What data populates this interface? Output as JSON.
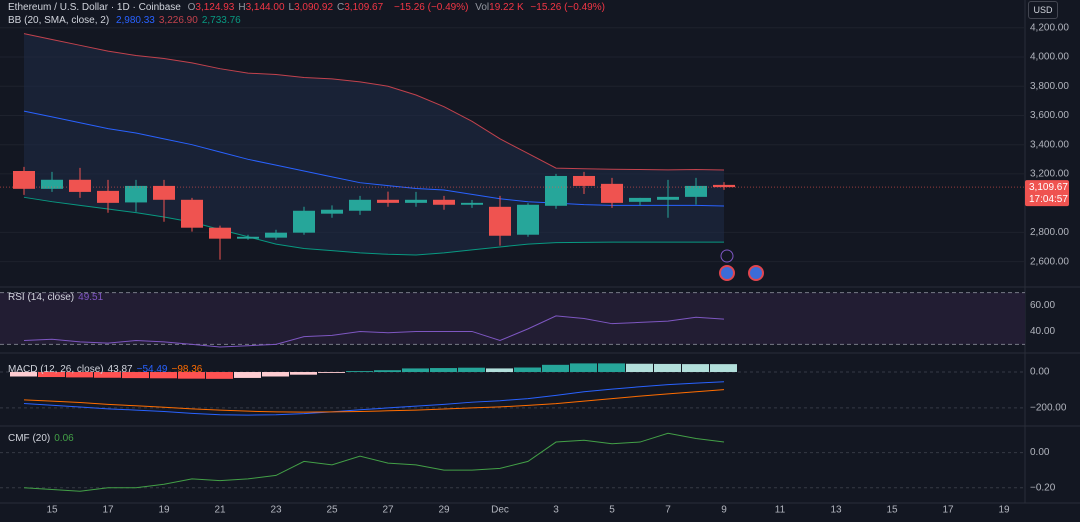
{
  "chart_data": [
    {
      "type": "candlestick",
      "title": "Ethereum / U.S. Dollar · 1D · Coinbase",
      "ohlc": [
        {
          "label": "O",
          "value": "3,124.93"
        },
        {
          "label": "H",
          "value": "3,144.00"
        },
        {
          "label": "L",
          "value": "3,090.92"
        },
        {
          "label": "C",
          "value": "3,109.67"
        }
      ],
      "change": "−15.26 (−0.49%)",
      "volume_label": "Vol",
      "volume": "19.22 K",
      "volume_change": "−15.26 (−0.49%)",
      "currency": "USD",
      "last_price_label": "3,109.67",
      "countdown": "17:04:57",
      "categories": [
        null,
        "15",
        null,
        "17",
        null,
        "19",
        null,
        "21",
        null,
        "23",
        null,
        "25",
        null,
        "27",
        null,
        "29",
        null,
        "Dec",
        null,
        "3",
        null,
        "5",
        null,
        "7",
        null,
        "9",
        null,
        "11",
        null,
        "13",
        null,
        "15",
        null,
        "17",
        null,
        "19"
      ],
      "open": [
        3220,
        3098,
        3160,
        3084,
        3005,
        3118,
        3023,
        2832,
        2757,
        2764,
        2798,
        2928,
        2948,
        3023,
        3002,
        3023,
        2989,
        2975,
        2784,
        2982,
        3186,
        3132,
        3009,
        3023,
        3043,
        3124.93,
        null,
        null,
        null,
        null,
        null,
        null,
        null,
        null,
        null,
        null
      ],
      "high": [
        3248,
        3214,
        3241,
        3159,
        3159,
        3159,
        3036,
        2846,
        2784,
        2818,
        2975,
        2985,
        3050,
        3079,
        3077,
        3050,
        3022,
        3050,
        3000,
        3200,
        3214,
        3173,
        3036,
        3159,
        3173,
        3144,
        null,
        null,
        null,
        null,
        null,
        null,
        null,
        null,
        null,
        null
      ],
      "low": [
        3057,
        3077,
        3036,
        2934,
        2941,
        2873,
        2805,
        2614,
        2750,
        2750,
        2784,
        2900,
        2920,
        2975,
        2975,
        2955,
        2968,
        2709,
        2770,
        2962,
        3063,
        2968,
        2982,
        2900,
        2990,
        3090.92,
        null,
        null,
        null,
        null,
        null,
        null,
        null,
        null,
        null,
        null
      ],
      "close": [
        3098,
        3160,
        3077,
        3002,
        3118,
        3023,
        2832,
        2757,
        2770,
        2798,
        2948,
        2955,
        3023,
        3002,
        3023,
        2989,
        3002,
        2777,
        2989,
        3186,
        3118,
        3002,
        3036,
        3043,
        3118,
        3109.67,
        null,
        null,
        null,
        null,
        null,
        null,
        null,
        null,
        null,
        null
      ],
      "up_color": "#26a69a",
      "down_color": "#ef5350",
      "ylim": [
        2440,
        4390
      ],
      "yticks": [
        {
          "value": 2600,
          "label": "2,600.00"
        },
        {
          "value": 2800,
          "label": "2,800.00"
        },
        {
          "value": 3200,
          "label": "3,200.00"
        },
        {
          "value": 3400,
          "label": "3,400.00"
        },
        {
          "value": 3600,
          "label": "3,600.00"
        },
        {
          "value": 3800,
          "label": "3,800.00"
        },
        {
          "value": 4000,
          "label": "4,000.00"
        },
        {
          "value": 4200,
          "label": "4,200.00"
        }
      ],
      "overlay": {
        "title": "BB (20, SMA, close, 2)",
        "fill": "#1e2a44",
        "series": [
          {
            "color": "#2962ff",
            "value_label": "2,980.33",
            "values": [
              3630,
              3590,
              3550,
              3510,
              3480,
              3440,
              3400,
              3350,
              3300,
              3260,
              3220,
              3180,
              3140,
              3120,
              3100,
              3090,
              3060,
              3030,
              3010,
              3000,
              2990,
              2985,
              2985,
              2985,
              2985,
              2980.33,
              null,
              null,
              null,
              null,
              null,
              null,
              null,
              null,
              null,
              null
            ]
          },
          {
            "color": "#c2424d",
            "value_label": "3,226.90",
            "values": [
              4160,
              4120,
              4080,
              4040,
              4010,
              3990,
              3960,
              3920,
              3890,
              3880,
              3860,
              3850,
              3830,
              3800,
              3740,
              3660,
              3560,
              3440,
              3340,
              3240,
              3235,
              3232,
              3230,
              3228,
              3230,
              3226.9,
              null,
              null,
              null,
              null,
              null,
              null,
              null,
              null,
              null,
              null
            ]
          },
          {
            "color": "#089981",
            "value_label": "2,733.76",
            "values": [
              3040,
              3010,
              2985,
              2960,
              2935,
              2905,
              2870,
              2820,
              2770,
              2720,
              2690,
              2675,
              2660,
              2650,
              2645,
              2660,
              2680,
              2700,
              2720,
              2730,
              2732,
              2733,
              2733,
              2733,
              2733,
              2733.76,
              null,
              null,
              null,
              null,
              null,
              null,
              null,
              null,
              null,
              null
            ]
          }
        ]
      }
    },
    {
      "type": "line",
      "title": "RSI (14, close)",
      "series": [
        {
          "color": "#7e57c2",
          "value_label": "49.51",
          "values": [
            33,
            34,
            32,
            31,
            33,
            32,
            30,
            28,
            29,
            30,
            36,
            37,
            40,
            39,
            40,
            40,
            40,
            33,
            42,
            52,
            50,
            46,
            47,
            48,
            51,
            49.51,
            null,
            null,
            null,
            null,
            null,
            null,
            null,
            null,
            null,
            null
          ]
        }
      ],
      "band": [
        30,
        70
      ],
      "band_color": "#221d33",
      "ylim": [
        28,
        72
      ],
      "yticks": [
        {
          "value": 40,
          "label": "40.00"
        },
        {
          "value": 60,
          "label": "60.00"
        }
      ]
    },
    {
      "type": "macd",
      "title": "MACD (12, 26, close)",
      "histogram": {
        "value_label": "43.87",
        "colors": {
          "up_rising": "#26a69a",
          "up_falling": "#b2dfdb",
          "down_falling": "#ff5252",
          "down_rising": "#ffcdd2"
        },
        "values": [
          -25,
          -28,
          -30,
          -32,
          -34,
          -35,
          -37,
          -38,
          -33,
          -25,
          -15,
          -5,
          5,
          10,
          20,
          22,
          24,
          20,
          25,
          40,
          48,
          48,
          46,
          45,
          44,
          43.87,
          null,
          null,
          null,
          null,
          null,
          null,
          null,
          null,
          null,
          null
        ]
      },
      "series": [
        {
          "color": "#2962ff",
          "value_label": "−54.49",
          "values": [
            -175,
            -185,
            -195,
            -205,
            -212,
            -220,
            -230,
            -238,
            -240,
            -238,
            -232,
            -222,
            -210,
            -200,
            -190,
            -180,
            -168,
            -160,
            -148,
            -130,
            -110,
            -95,
            -82,
            -70,
            -62,
            -54.49,
            null,
            null,
            null,
            null,
            null,
            null,
            null,
            null,
            null,
            null
          ]
        },
        {
          "color": "#ff6d00",
          "value_label": "−98.36",
          "values": [
            -155,
            -162,
            -170,
            -180,
            -188,
            -196,
            -205,
            -212,
            -218,
            -222,
            -223,
            -222,
            -220,
            -216,
            -212,
            -206,
            -200,
            -194,
            -186,
            -176,
            -162,
            -148,
            -134,
            -122,
            -110,
            -98.36,
            null,
            null,
            null,
            null,
            null,
            null,
            null,
            null,
            null,
            null
          ]
        }
      ],
      "ylim": [
        -295,
        78
      ],
      "yticks": [
        {
          "value": -200,
          "label": "−200.00"
        },
        {
          "value": 0,
          "label": "0.00"
        }
      ]
    },
    {
      "type": "line",
      "title": "CMF (20)",
      "series": [
        {
          "color": "#43a047",
          "value_label": "0.06",
          "values": [
            -0.2,
            -0.21,
            -0.22,
            -0.2,
            -0.2,
            -0.18,
            -0.15,
            -0.16,
            -0.15,
            -0.13,
            -0.05,
            -0.07,
            -0.02,
            -0.06,
            -0.07,
            -0.1,
            -0.1,
            -0.09,
            -0.05,
            0.06,
            0.07,
            0.05,
            0.06,
            0.11,
            0.08,
            0.06,
            null,
            null,
            null,
            null,
            null,
            null,
            null,
            null,
            null,
            null
          ]
        }
      ],
      "ylim": [
        -0.27,
        0.14
      ],
      "yticks": [
        {
          "value": -0.2,
          "label": "−0.20"
        },
        {
          "value": 0,
          "label": "0.00"
        }
      ]
    }
  ]
}
